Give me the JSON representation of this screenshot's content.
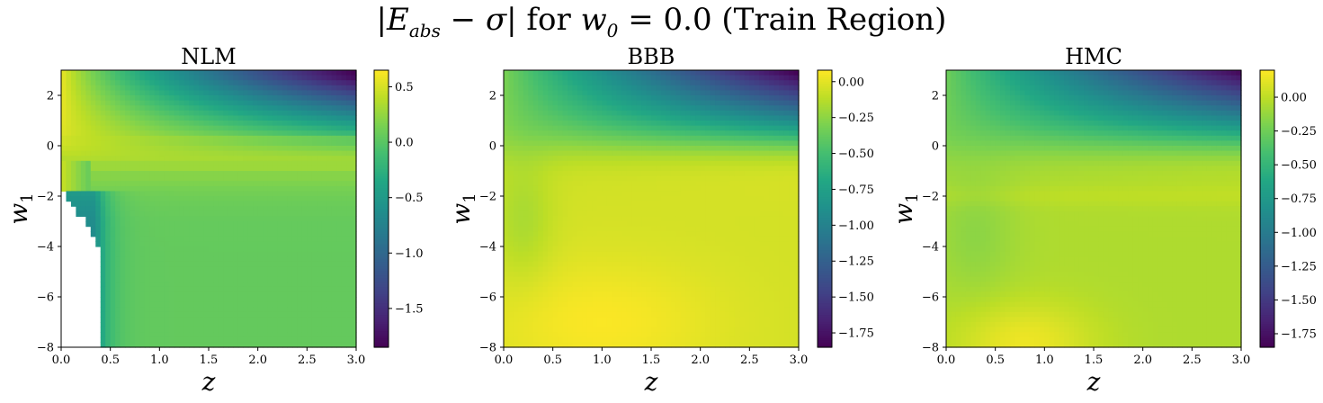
{
  "figure": {
    "title": {
      "lead": "|",
      "e": "E",
      "e_sub": "abs",
      "mid": " − ",
      "sigma": "σ",
      "tail": "| for ",
      "w": "w",
      "w_sub": "0",
      "rest": " = 0.0 (Train Region)"
    }
  },
  "chart_data": [
    {
      "type": "heatmap",
      "title": "NLM",
      "xlabel": "z",
      "ylabel": "w",
      "ylabel_sub": "1",
      "xlim": [
        0.0,
        3.0
      ],
      "ylim": [
        -8,
        3
      ],
      "xticks": [
        "0.0",
        "0.5",
        "1.0",
        "1.5",
        "2.0",
        "2.5",
        "3.0"
      ],
      "yticks": [
        "−8",
        "−6",
        "−4",
        "−2",
        "0",
        "2"
      ],
      "colorbar": {
        "vmin": -1.85,
        "vmax": 0.65,
        "ticks": [
          0.5,
          0.0,
          -0.5,
          -1.0,
          -1.5
        ],
        "tick_labels": [
          "0.5",
          "0.0",
          "−0.5",
          "−1.0",
          "−1.5"
        ]
      },
      "values_description_points": [
        {
          "z": 0.05,
          "w1": 2.5,
          "value": 0.6
        },
        {
          "z": 2.8,
          "w1": 2.7,
          "value": -1.8
        },
        {
          "z": 1.5,
          "w1": -4,
          "value": 0.05
        },
        {
          "z": 0.45,
          "w1": -4,
          "value": -0.6
        }
      ],
      "blank_region": "undefined (NaN) values for z < 0.4, w1 < -2"
    },
    {
      "type": "heatmap",
      "title": "BBB",
      "xlabel": "z",
      "ylabel": "w",
      "ylabel_sub": "1",
      "xlim": [
        0.0,
        3.0
      ],
      "ylim": [
        -8,
        3
      ],
      "xticks": [
        "0.0",
        "0.5",
        "1.0",
        "1.5",
        "2.0",
        "2.5",
        "3.0"
      ],
      "yticks": [
        "−8",
        "−6",
        "−4",
        "−2",
        "0",
        "2"
      ],
      "colorbar": {
        "vmin": -1.85,
        "vmax": 0.08,
        "ticks": [
          0.0,
          -0.25,
          -0.5,
          -0.75,
          -1.0,
          -1.25,
          -1.5,
          -1.75
        ],
        "tick_labels": [
          "0.00",
          "−0.25",
          "−0.50",
          "−0.75",
          "−1.00",
          "−1.25",
          "−1.50",
          "−1.75"
        ]
      },
      "values_description_points": [
        {
          "z": 0.1,
          "w1": 2.5,
          "value": -0.05
        },
        {
          "z": 2.8,
          "w1": 2.7,
          "value": -1.8
        },
        {
          "z": 1.0,
          "w1": -7,
          "value": 0.05
        },
        {
          "z": 2.5,
          "w1": -4,
          "value": -0.1
        }
      ]
    },
    {
      "type": "heatmap",
      "title": "HMC",
      "xlabel": "z",
      "ylabel": "w",
      "ylabel_sub": "1",
      "xlim": [
        0.0,
        3.0
      ],
      "ylim": [
        -8,
        3
      ],
      "xticks": [
        "0.0",
        "0.5",
        "1.0",
        "1.5",
        "2.0",
        "2.5",
        "3.0"
      ],
      "yticks": [
        "−8",
        "−6",
        "−4",
        "−2",
        "0",
        "2"
      ],
      "colorbar": {
        "vmin": -1.85,
        "vmax": 0.2,
        "ticks": [
          0.0,
          -0.25,
          -0.5,
          -0.75,
          -1.0,
          -1.25,
          -1.5,
          -1.75
        ],
        "tick_labels": [
          "0.00",
          "−0.25",
          "−0.50",
          "−0.75",
          "−1.00",
          "−1.25",
          "−1.50",
          "−1.75"
        ]
      },
      "values_description_points": [
        {
          "z": 0.1,
          "w1": 2.5,
          "value": 0.0
        },
        {
          "z": 2.8,
          "w1": 2.7,
          "value": -1.8
        },
        {
          "z": 0.8,
          "w1": -7.5,
          "value": 0.18
        },
        {
          "z": 2.5,
          "w1": -5,
          "value": -0.05
        }
      ]
    }
  ]
}
